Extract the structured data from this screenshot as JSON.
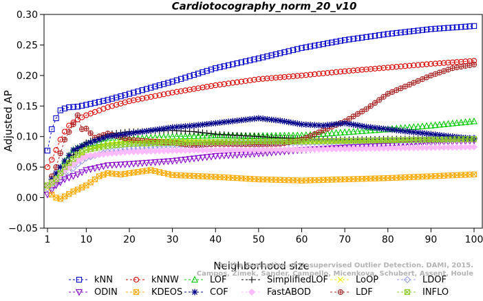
{
  "chart_data": {
    "type": "line",
    "title": "Cardiotocography_norm_20_v10",
    "xlabel": "Neighborhood size",
    "ylabel": "Adjusted AP",
    "xlim": [
      1,
      100
    ],
    "ylim": [
      -0.05,
      0.3
    ],
    "xticks": [
      1,
      10,
      20,
      30,
      40,
      50,
      60,
      70,
      80,
      90,
      100
    ],
    "yticks": [
      -0.05,
      0.0,
      0.05,
      0.1,
      0.15,
      0.2,
      0.25,
      0.3
    ],
    "ytick_labels": [
      "−0.05",
      "0.00",
      "0.05",
      "0.10",
      "0.15",
      "0.20",
      "0.25",
      "0.30"
    ],
    "grid": false,
    "legend_position": "bottom",
    "watermark": [
      "Campos, Zimek, Sander, Campello, Micenkova, Schubert, Assent, Houle",
      "On the Evaluation of Unsupervised Outlier Detection. DAMI, 2015."
    ],
    "series": [
      {
        "name": "kNN",
        "color": "#0000cc",
        "marker": "square",
        "dash": "3,3",
        "knots": [
          [
            1,
            0.077
          ],
          [
            2,
            0.112
          ],
          [
            3,
            0.13
          ],
          [
            4,
            0.143
          ],
          [
            5,
            0.146
          ],
          [
            6,
            0.148
          ],
          [
            8,
            0.149
          ],
          [
            10,
            0.152
          ],
          [
            15,
            0.16
          ],
          [
            20,
            0.17
          ],
          [
            30,
            0.19
          ],
          [
            40,
            0.212
          ],
          [
            50,
            0.228
          ],
          [
            60,
            0.245
          ],
          [
            70,
            0.258
          ],
          [
            80,
            0.268
          ],
          [
            90,
            0.276
          ],
          [
            100,
            0.281
          ]
        ]
      },
      {
        "name": "kNNW",
        "color": "#dd0000",
        "marker": "circle",
        "dash": "3,3",
        "knots": [
          [
            1,
            0.05
          ],
          [
            2,
            0.062
          ],
          [
            3,
            0.078
          ],
          [
            4,
            0.095
          ],
          [
            5,
            0.108
          ],
          [
            6,
            0.118
          ],
          [
            8,
            0.128
          ],
          [
            10,
            0.135
          ],
          [
            15,
            0.148
          ],
          [
            20,
            0.158
          ],
          [
            30,
            0.172
          ],
          [
            40,
            0.184
          ],
          [
            50,
            0.194
          ],
          [
            60,
            0.2
          ],
          [
            70,
            0.207
          ],
          [
            80,
            0.213
          ],
          [
            90,
            0.219
          ],
          [
            100,
            0.224
          ]
        ]
      },
      {
        "name": "LOF",
        "color": "#00cc00",
        "marker": "triangle",
        "dash": "3,3",
        "knots": [
          [
            1,
            0.02
          ],
          [
            3,
            0.035
          ],
          [
            5,
            0.06
          ],
          [
            7,
            0.078
          ],
          [
            10,
            0.088
          ],
          [
            15,
            0.093
          ],
          [
            20,
            0.096
          ],
          [
            30,
            0.1
          ],
          [
            40,
            0.102
          ],
          [
            50,
            0.101
          ],
          [
            60,
            0.102
          ],
          [
            70,
            0.107
          ],
          [
            80,
            0.112
          ],
          [
            90,
            0.118
          ],
          [
            100,
            0.125
          ]
        ]
      },
      {
        "name": "SimplifiedLOF",
        "color": "#000000",
        "marker": "plus",
        "dash": "3,3",
        "knots": [
          [
            1,
            0.02
          ],
          [
            3,
            0.03
          ],
          [
            5,
            0.05
          ],
          [
            7,
            0.07
          ],
          [
            10,
            0.09
          ],
          [
            15,
            0.104
          ],
          [
            20,
            0.108
          ],
          [
            25,
            0.109
          ],
          [
            30,
            0.11
          ],
          [
            35,
            0.108
          ],
          [
            40,
            0.104
          ],
          [
            50,
            0.1
          ],
          [
            60,
            0.096
          ],
          [
            70,
            0.095
          ],
          [
            80,
            0.096
          ],
          [
            90,
            0.096
          ],
          [
            100,
            0.097
          ]
        ]
      },
      {
        "name": "LoOP",
        "color": "#eeee00",
        "marker": "cross",
        "dash": "3,3",
        "knots": [
          [
            1,
            0.015
          ],
          [
            3,
            0.025
          ],
          [
            5,
            0.04
          ],
          [
            8,
            0.065
          ],
          [
            10,
            0.078
          ],
          [
            15,
            0.088
          ],
          [
            20,
            0.092
          ],
          [
            30,
            0.093
          ],
          [
            40,
            0.092
          ],
          [
            50,
            0.091
          ],
          [
            60,
            0.091
          ],
          [
            70,
            0.092
          ],
          [
            80,
            0.093
          ],
          [
            90,
            0.094
          ],
          [
            100,
            0.095
          ]
        ]
      },
      {
        "name": "LDOF",
        "color": "#9999ee",
        "marker": "diamond",
        "dash": "3,3",
        "knots": [
          [
            1,
            0.015
          ],
          [
            3,
            0.022
          ],
          [
            5,
            0.035
          ],
          [
            8,
            0.055
          ],
          [
            10,
            0.065
          ],
          [
            15,
            0.075
          ],
          [
            20,
            0.08
          ],
          [
            30,
            0.085
          ],
          [
            40,
            0.088
          ],
          [
            50,
            0.089
          ],
          [
            60,
            0.09
          ],
          [
            70,
            0.092
          ],
          [
            80,
            0.093
          ],
          [
            90,
            0.095
          ],
          [
            100,
            0.098
          ]
        ]
      },
      {
        "name": "ODIN",
        "color": "#8800cc",
        "marker": "triangle-down",
        "dash": "3,3",
        "knots": [
          [
            1,
            0.005
          ],
          [
            3,
            0.02
          ],
          [
            5,
            0.03
          ],
          [
            8,
            0.038
          ],
          [
            10,
            0.045
          ],
          [
            15,
            0.053
          ],
          [
            20,
            0.055
          ],
          [
            30,
            0.06
          ],
          [
            40,
            0.068
          ],
          [
            50,
            0.072
          ],
          [
            60,
            0.078
          ],
          [
            70,
            0.082
          ],
          [
            80,
            0.085
          ],
          [
            90,
            0.09
          ],
          [
            100,
            0.093
          ]
        ]
      },
      {
        "name": "KDEOS",
        "color": "#ffaa00",
        "marker": "x-square",
        "dash": "3,3",
        "knots": [
          [
            1,
            0.02
          ],
          [
            2,
            0.005
          ],
          [
            3,
            0.0
          ],
          [
            4,
            -0.002
          ],
          [
            5,
            0.002
          ],
          [
            7,
            0.01
          ],
          [
            10,
            0.02
          ],
          [
            13,
            0.035
          ],
          [
            15,
            0.04
          ],
          [
            18,
            0.038
          ],
          [
            20,
            0.04
          ],
          [
            25,
            0.045
          ],
          [
            30,
            0.037
          ],
          [
            40,
            0.034
          ],
          [
            50,
            0.03
          ],
          [
            60,
            0.028
          ],
          [
            70,
            0.03
          ],
          [
            80,
            0.032
          ],
          [
            90,
            0.035
          ],
          [
            100,
            0.038
          ]
        ]
      },
      {
        "name": "LDF",
        "color": "#aa2222",
        "marker": "circle-plus",
        "dash": "3,3",
        "knots": [
          [
            1,
            0.02
          ],
          [
            3,
            0.05
          ],
          [
            5,
            0.095
          ],
          [
            7,
            0.12
          ],
          [
            8,
            0.135
          ],
          [
            9,
            0.112
          ],
          [
            10,
            0.113
          ],
          [
            12,
            0.098
          ],
          [
            15,
            0.105
          ],
          [
            20,
            0.095
          ],
          [
            25,
            0.092
          ],
          [
            30,
            0.09
          ],
          [
            35,
            0.085
          ],
          [
            40,
            0.088
          ],
          [
            50,
            0.087
          ],
          [
            55,
            0.088
          ],
          [
            60,
            0.095
          ],
          [
            65,
            0.11
          ],
          [
            70,
            0.125
          ],
          [
            75,
            0.145
          ],
          [
            80,
            0.17
          ],
          [
            85,
            0.185
          ],
          [
            90,
            0.2
          ],
          [
            95,
            0.212
          ],
          [
            100,
            0.218
          ]
        ]
      },
      {
        "name": "COF",
        "color": "#000088",
        "marker": "asterisk",
        "dash": "3,3",
        "knots": [
          [
            1,
            0.02
          ],
          [
            3,
            0.04
          ],
          [
            5,
            0.06
          ],
          [
            7,
            0.078
          ],
          [
            10,
            0.088
          ],
          [
            15,
            0.1
          ],
          [
            20,
            0.105
          ],
          [
            25,
            0.11
          ],
          [
            30,
            0.115
          ],
          [
            35,
            0.118
          ],
          [
            40,
            0.122
          ],
          [
            45,
            0.126
          ],
          [
            50,
            0.13
          ],
          [
            55,
            0.126
          ],
          [
            60,
            0.12
          ],
          [
            65,
            0.118
          ],
          [
            70,
            0.122
          ],
          [
            75,
            0.116
          ],
          [
            80,
            0.112
          ],
          [
            85,
            0.108
          ],
          [
            90,
            0.104
          ],
          [
            95,
            0.1
          ],
          [
            100,
            0.096
          ]
        ]
      },
      {
        "name": "FastABOD",
        "color": "#ffbbff",
        "marker": "diamond-filled",
        "dash": "3,3",
        "knots": [
          [
            1,
            0.02
          ],
          [
            3,
            0.03
          ],
          [
            5,
            0.045
          ],
          [
            8,
            0.06
          ],
          [
            10,
            0.068
          ],
          [
            15,
            0.072
          ],
          [
            20,
            0.075
          ],
          [
            30,
            0.077
          ],
          [
            40,
            0.078
          ],
          [
            50,
            0.078
          ],
          [
            60,
            0.079
          ],
          [
            70,
            0.08
          ],
          [
            80,
            0.081
          ],
          [
            90,
            0.082
          ],
          [
            100,
            0.083
          ]
        ]
      },
      {
        "name": "INFLO",
        "color": "#88cc22",
        "marker": "x-square",
        "dash": "3,3",
        "knots": [
          [
            1,
            0.02
          ],
          [
            3,
            0.03
          ],
          [
            5,
            0.05
          ],
          [
            8,
            0.07
          ],
          [
            10,
            0.078
          ],
          [
            15,
            0.085
          ],
          [
            20,
            0.088
          ],
          [
            30,
            0.09
          ],
          [
            40,
            0.091
          ],
          [
            50,
            0.092
          ],
          [
            60,
            0.092
          ],
          [
            70,
            0.093
          ],
          [
            80,
            0.094
          ],
          [
            90,
            0.095
          ],
          [
            100,
            0.096
          ]
        ]
      }
    ]
  }
}
